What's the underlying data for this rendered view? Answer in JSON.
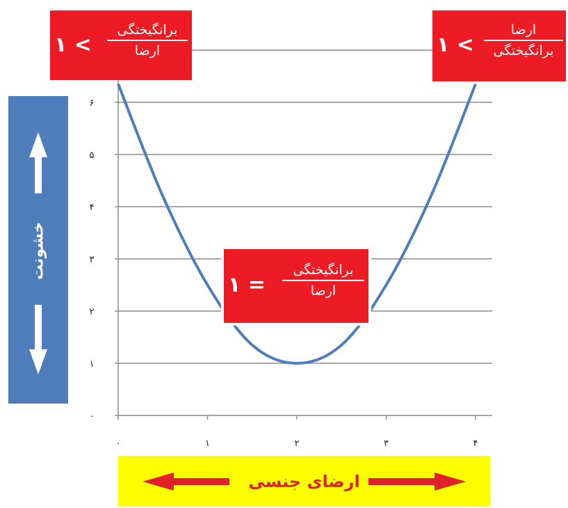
{
  "chart_data": {
    "type": "line",
    "title": "",
    "xlabel": "ارضای جنسی",
    "ylabel": "خشونت",
    "x_ticks": [
      "۰",
      "۱",
      "۲",
      "۳",
      "۴"
    ],
    "y_ticks": [
      "۰",
      "۱",
      "۲",
      "۳",
      "۴",
      "۵",
      "۶"
    ],
    "xlim": [
      0,
      4
    ],
    "ylim": [
      0,
      6
    ],
    "grid": true,
    "series": [
      {
        "x": [
          0,
          0.5,
          1,
          1.5,
          2,
          2.5,
          3,
          3.5,
          4
        ],
        "y": [
          6.35,
          4.2,
          2.5,
          1.35,
          1.0,
          1.35,
          2.5,
          4.2,
          6.35
        ]
      }
    ],
    "annotations": [
      {
        "id": "left",
        "numerator": "برانگیختگی",
        "denominator": "ارضا",
        "relation": "۱ <"
      },
      {
        "id": "right",
        "numerator": "ارضا",
        "denominator": "برانگیختگی",
        "relation": "۱ <"
      },
      {
        "id": "center",
        "numerator": "برانگیختگی",
        "denominator": "ارضا",
        "relation": "۱ ="
      }
    ]
  },
  "colors": {
    "curve": "#4f7dbb",
    "side_box": "#4f7dbb",
    "annotation_box": "#ed1c24",
    "xlabel_box": "#ffff00",
    "arrow_red": "#e0202a"
  }
}
